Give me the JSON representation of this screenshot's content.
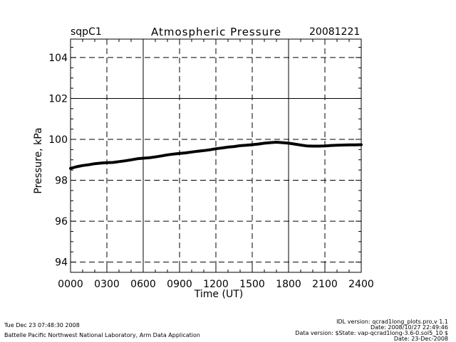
{
  "header": {
    "site": "sqpC1",
    "title": "Atmospheric Pressure",
    "date": "20081221"
  },
  "footer": {
    "left_line1": "Tue Dec 23 07:48:30 2008",
    "left_line2": "Battelle Pacific Northwest National Laboratory, Arm Data Application",
    "right_line1": "IDL version: qcrad1long_plots.pro,v 1.1",
    "right_line2": "Date: 2008/10/27 22:49:46",
    "right_line3": "Data version: $State: vap-qcrad1long-3.6-0.sol5_10 $",
    "right_line4": "Date: 23-Dec-2008"
  },
  "chart_data": {
    "type": "line",
    "title": "Atmospheric Pressure",
    "xlabel": "Time (UT)",
    "ylabel": "Pressure, kPa",
    "xlim": [
      0,
      24
    ],
    "ylim": [
      93.5,
      104.9
    ],
    "x_ticks": [
      0,
      3,
      6,
      9,
      12,
      15,
      18,
      21,
      24
    ],
    "x_tick_labels": [
      "0000",
      "0300",
      "0600",
      "0900",
      "1200",
      "1500",
      "1800",
      "2100",
      "2400"
    ],
    "y_ticks": [
      94,
      96,
      98,
      100,
      102,
      104
    ],
    "y_tick_labels": [
      "94",
      "96",
      "98",
      "100",
      "102",
      "104"
    ],
    "grid": "dashed",
    "line_color": "#000000",
    "series": [
      {
        "x": [
          0,
          0.5,
          1,
          1.5,
          2,
          2.5,
          3,
          3.5,
          4,
          4.5,
          5,
          5.5,
          6,
          6.5,
          7,
          7.5,
          8,
          8.5,
          9,
          9.5,
          10,
          10.5,
          11,
          11.5,
          12,
          12.5,
          13,
          13.5,
          14,
          14.5,
          15,
          15.5,
          16,
          16.5,
          17,
          17.5,
          18,
          18.5,
          19,
          19.5,
          20,
          20.5,
          21,
          21.5,
          22,
          22.5,
          23,
          23.5,
          24
        ],
        "values": [
          98.58,
          98.66,
          98.72,
          98.76,
          98.81,
          98.84,
          98.86,
          98.87,
          98.91,
          98.95,
          99.0,
          99.05,
          99.08,
          99.1,
          99.14,
          99.19,
          99.24,
          99.28,
          99.31,
          99.34,
          99.38,
          99.42,
          99.45,
          99.49,
          99.54,
          99.58,
          99.62,
          99.65,
          99.69,
          99.71,
          99.74,
          99.77,
          99.81,
          99.84,
          99.86,
          99.84,
          99.81,
          99.77,
          99.72,
          99.68,
          99.67,
          99.67,
          99.68,
          99.7,
          99.71,
          99.72,
          99.73,
          99.73,
          99.74
        ]
      }
    ]
  }
}
